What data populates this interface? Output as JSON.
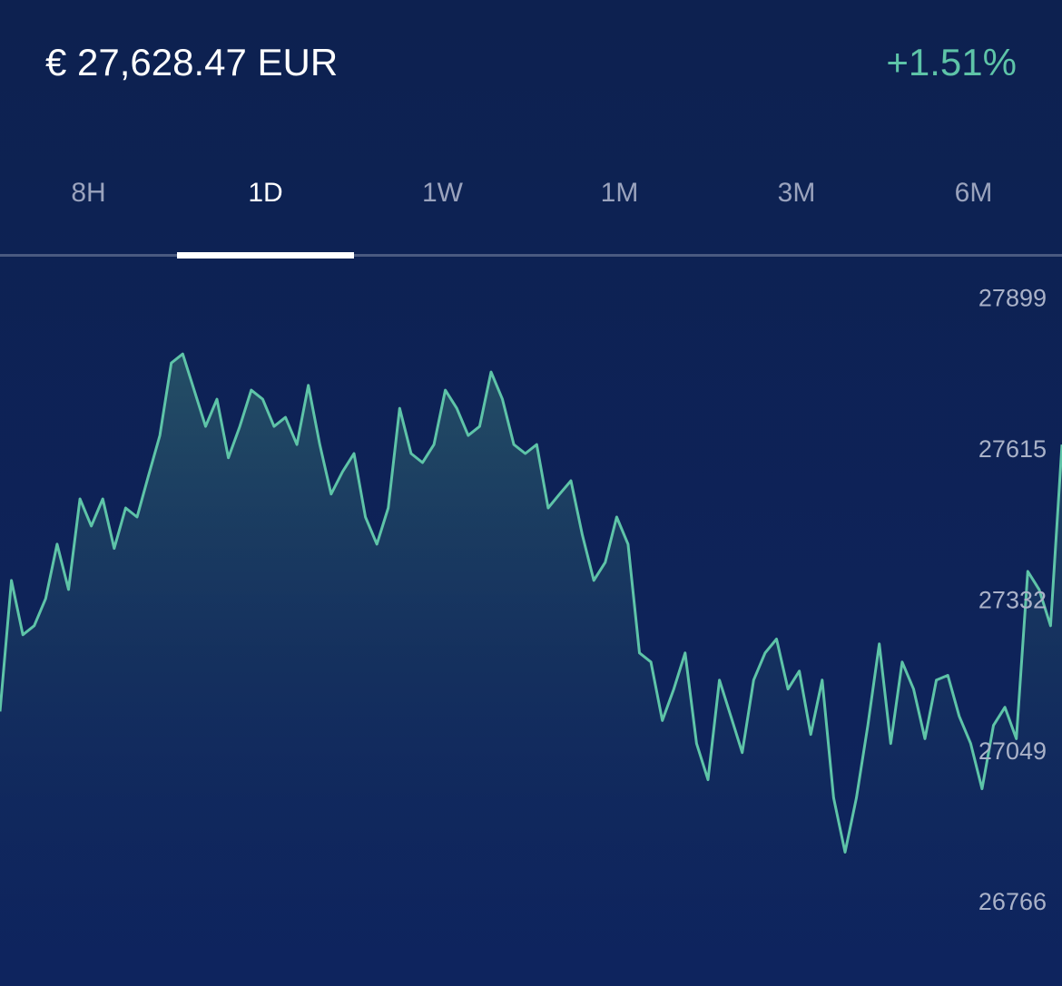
{
  "header": {
    "price": "€ 27,628.47 EUR",
    "change": "+1.51%"
  },
  "tabs": {
    "items": [
      "8H",
      "1D",
      "1W",
      "1M",
      "3M",
      "6M"
    ],
    "selected_index": 1
  },
  "chart_data": {
    "type": "line",
    "color": "#5ec4a8",
    "ylim": [
      26611,
      27976
    ],
    "yticks": [
      27899,
      27615,
      27332,
      27049,
      26766
    ],
    "values": [
      27126,
      27372,
      27270,
      27287,
      27338,
      27440,
      27355,
      27525,
      27474,
      27525,
      27432,
      27508,
      27491,
      27568,
      27644,
      27780,
      27797,
      27729,
      27661,
      27712,
      27602,
      27661,
      27729,
      27712,
      27661,
      27678,
      27627,
      27738,
      27627,
      27534,
      27576,
      27610,
      27491,
      27440,
      27508,
      27695,
      27610,
      27593,
      27627,
      27729,
      27695,
      27644,
      27661,
      27763,
      27712,
      27627,
      27610,
      27627,
      27508,
      27534,
      27559,
      27457,
      27372,
      27406,
      27491,
      27440,
      27236,
      27219,
      27109,
      27168,
      27236,
      27066,
      26998,
      27185,
      27117,
      27049,
      27185,
      27236,
      27262,
      27168,
      27202,
      27083,
      27185,
      26964,
      26862,
      26964,
      27100,
      27253,
      27066,
      27219,
      27168,
      27075,
      27185,
      27194,
      27117,
      27066,
      26981,
      27100,
      27134,
      27075,
      27389,
      27355,
      27287,
      27627
    ]
  }
}
